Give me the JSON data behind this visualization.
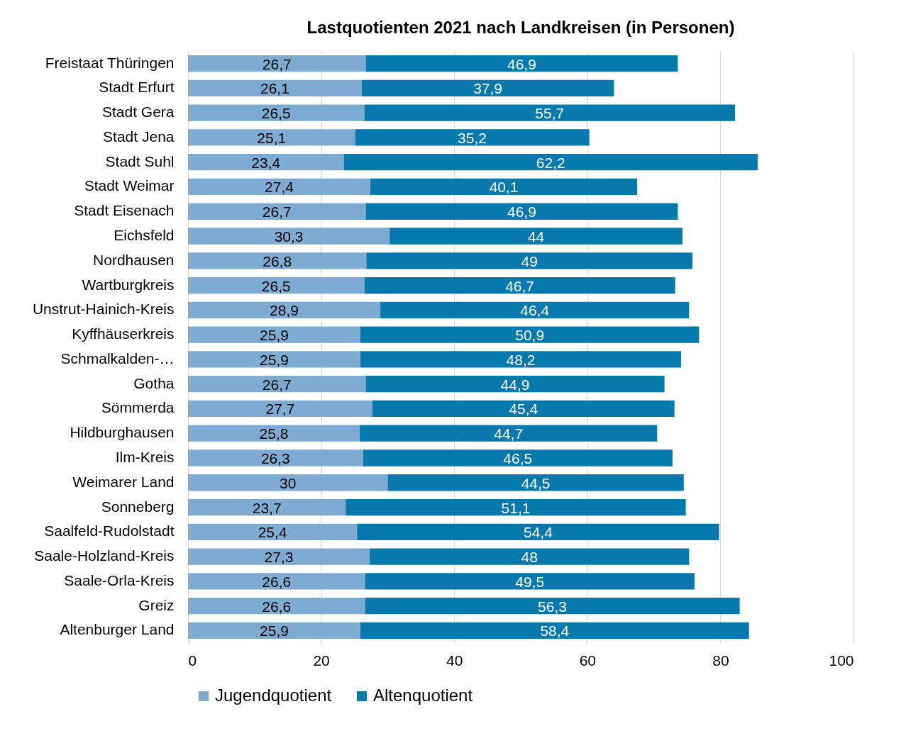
{
  "chart_data": {
    "type": "bar",
    "orientation": "horizontal",
    "stacked": true,
    "title": "Lastquotienten 2021 nach Landkreisen (in Personen)",
    "categories": [
      "Freistaat Thüringen",
      "Stadt Erfurt",
      "Stadt Gera",
      "Stadt Jena",
      "Stadt Suhl",
      "Stadt Weimar",
      "Stadt Eisenach",
      "Eichsfeld",
      "Nordhausen",
      "Wartburgkreis",
      "Unstrut-Hainich-Kreis",
      "Kyffhäuserkreis",
      "Schmalkalden-…",
      "Gotha",
      "Sömmerda",
      "Hildburghausen",
      "Ilm-Kreis",
      "Weimarer Land",
      "Sonneberg",
      "Saalfeld-Rudolstadt",
      "Saale-Holzland-Kreis",
      "Saale-Orla-Kreis",
      "Greiz",
      "Altenburger Land"
    ],
    "series": [
      {
        "name": "Jugendquotient",
        "color": "#7eabd2",
        "values": [
          26.7,
          26.1,
          26.5,
          25.1,
          23.4,
          27.4,
          26.7,
          30.3,
          26.8,
          26.5,
          28.9,
          25.9,
          25.9,
          26.7,
          27.7,
          25.8,
          26.3,
          30,
          23.7,
          25.4,
          27.3,
          26.6,
          26.6,
          25.9
        ],
        "value_labels": [
          "26,7",
          "26,1",
          "26,5",
          "25,1",
          "23,4",
          "27,4",
          "26,7",
          "30,3",
          "26,8",
          "26,5",
          "28,9",
          "25,9",
          "25,9",
          "26,7",
          "27,7",
          "25,8",
          "26,3",
          "30",
          "23,7",
          "25,4",
          "27,3",
          "26,6",
          "26,6",
          "25,9"
        ]
      },
      {
        "name": "Altenquotient",
        "color": "#0779ad",
        "values": [
          46.9,
          37.9,
          55.7,
          35.2,
          62.2,
          40.1,
          46.9,
          44,
          49,
          46.7,
          46.4,
          50.9,
          48.2,
          44.9,
          45.4,
          44.7,
          46.5,
          44.5,
          51.1,
          54.4,
          48,
          49.5,
          56.3,
          58.4
        ],
        "value_labels": [
          "46,9",
          "37,9",
          "55,7",
          "35,2",
          "62,2",
          "40,1",
          "46,9",
          "44",
          "49",
          "46,7",
          "46,4",
          "50,9",
          "48,2",
          "44,9",
          "45,4",
          "44,7",
          "46,5",
          "44,5",
          "51,1",
          "54,4",
          "48",
          "49,5",
          "56,3",
          "58,4"
        ]
      }
    ],
    "xlim": [
      0,
      100
    ],
    "xticks": [
      0,
      20,
      40,
      60,
      80,
      100
    ],
    "grid": "x",
    "legend": "bottom"
  }
}
